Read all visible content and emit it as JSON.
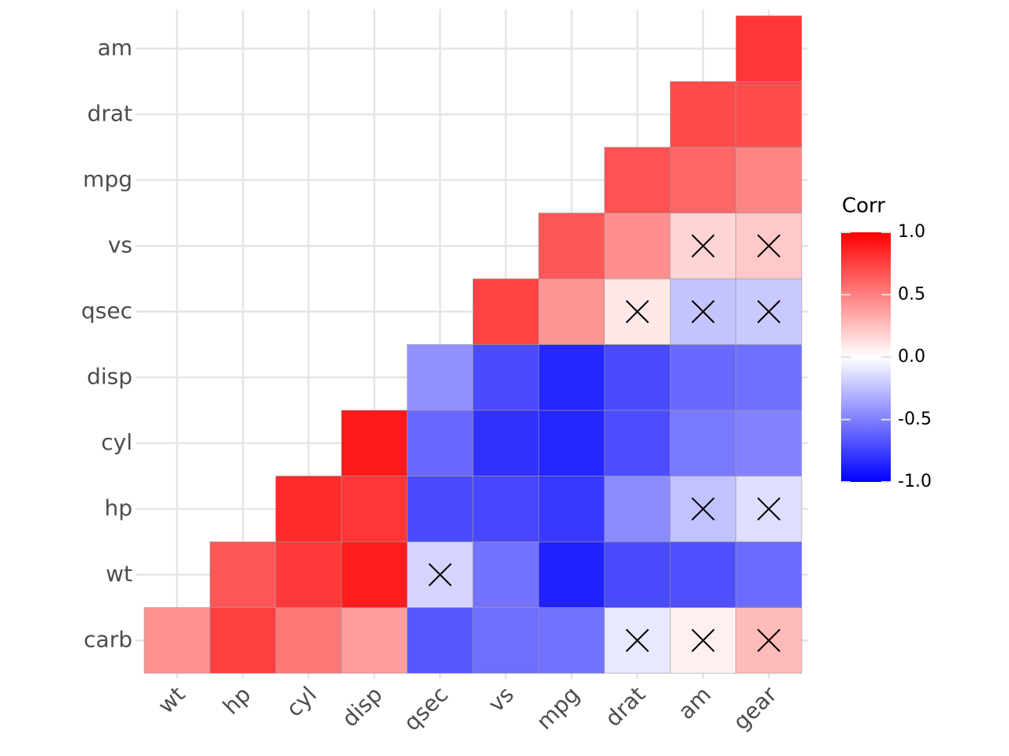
{
  "chart_data": {
    "type": "heatmap",
    "x": [
      "wt",
      "hp",
      "cyl",
      "disp",
      "qsec",
      "vs",
      "mpg",
      "drat",
      "am",
      "gear"
    ],
    "y": [
      "carb",
      "wt",
      "hp",
      "cyl",
      "disp",
      "qsec",
      "vs",
      "mpg",
      "drat",
      "am"
    ],
    "values": [
      [
        0.43,
        0.75,
        0.53,
        0.39,
        -0.66,
        -0.57,
        -0.55,
        -0.09,
        0.06,
        0.27
      ],
      [
        null,
        0.66,
        0.78,
        0.89,
        -0.17,
        -0.55,
        -0.87,
        -0.71,
        -0.69,
        -0.58
      ],
      [
        null,
        null,
        0.83,
        0.79,
        -0.71,
        -0.72,
        -0.78,
        -0.45,
        -0.24,
        -0.13
      ],
      [
        null,
        null,
        null,
        0.9,
        -0.59,
        -0.81,
        -0.85,
        -0.7,
        -0.52,
        -0.49
      ],
      [
        null,
        null,
        null,
        null,
        -0.43,
        -0.71,
        -0.85,
        -0.71,
        -0.59,
        -0.56
      ],
      [
        null,
        null,
        null,
        null,
        null,
        0.74,
        0.42,
        0.09,
        -0.23,
        -0.21
      ],
      [
        null,
        null,
        null,
        null,
        null,
        null,
        0.66,
        0.44,
        0.17,
        0.21
      ],
      [
        null,
        null,
        null,
        null,
        null,
        null,
        null,
        0.68,
        0.6,
        0.48
      ],
      [
        null,
        null,
        null,
        null,
        null,
        null,
        null,
        null,
        0.71,
        0.7
      ],
      [
        null,
        null,
        null,
        null,
        null,
        null,
        null,
        null,
        null,
        0.79
      ]
    ],
    "insignificant": [
      [
        "carb",
        "drat"
      ],
      [
        "carb",
        "am"
      ],
      [
        "carb",
        "gear"
      ],
      [
        "wt",
        "qsec"
      ],
      [
        "hp",
        "am"
      ],
      [
        "hp",
        "gear"
      ],
      [
        "qsec",
        "drat"
      ],
      [
        "qsec",
        "am"
      ],
      [
        "qsec",
        "gear"
      ],
      [
        "vs",
        "am"
      ],
      [
        "vs",
        "gear"
      ]
    ],
    "legend_title": "Corr",
    "colors": {
      "low": "#0000ff",
      "mid": "#ffffff",
      "high": "#ff0000"
    },
    "clim": [
      -1,
      1
    ],
    "cticks": [
      {
        "value": 1,
        "label": "1.0"
      },
      0.5,
      {
        "value": 0,
        "label": "0.0"
      },
      -0.5,
      {
        "value": -1,
        "label": "-1.0"
      }
    ],
    "grid": true
  }
}
